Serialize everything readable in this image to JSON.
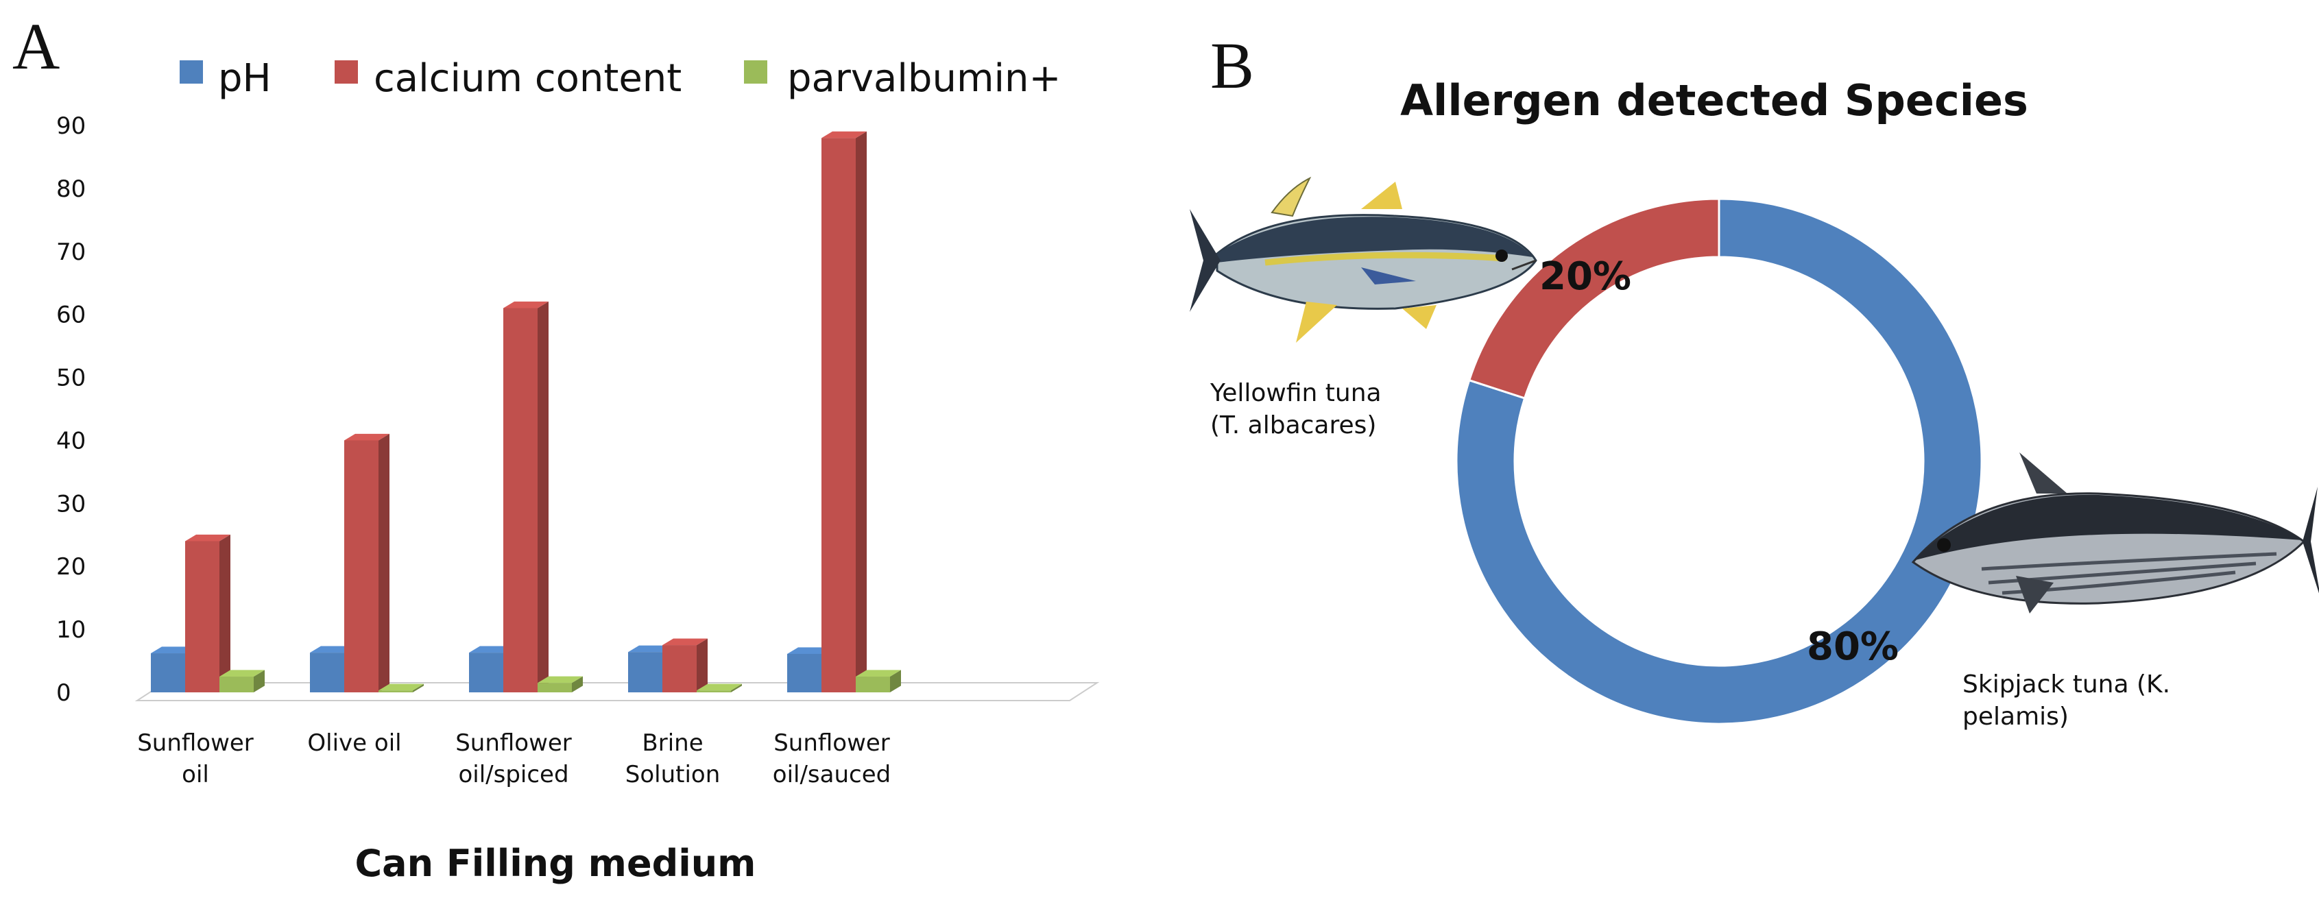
{
  "panels": {
    "a_label": "A",
    "b_label": "B"
  },
  "colors": {
    "ph": "#4f81bd",
    "calcium": "#c0504d",
    "parvalbumin": "#9bbb59",
    "ring_large": "#4f81bd",
    "ring_small": "#c0504d"
  },
  "chart_data": [
    {
      "type": "bar",
      "title": "",
      "xlabel": "Can Filling medium",
      "ylabel": "",
      "ylim": [
        0,
        90
      ],
      "yticks": [
        "0",
        "10",
        "20",
        "30",
        "40",
        "50",
        "60",
        "70",
        "80",
        "90"
      ],
      "legend_placement": "top",
      "categories": [
        [
          "Sunflower",
          "oil"
        ],
        [
          "Olive oil"
        ],
        [
          "Sunflower",
          "oil/spiced"
        ],
        [
          "Brine",
          "Solution"
        ],
        [
          "Sunflower",
          "oil/sauced"
        ]
      ],
      "series": [
        {
          "name": "pH",
          "values": [
            6.2,
            6.3,
            6.3,
            6.4,
            6.1
          ],
          "color": "#4f81bd"
        },
        {
          "name": "calcium content",
          "values": [
            24,
            40,
            61,
            7.5,
            88
          ],
          "color": "#c0504d"
        },
        {
          "name": "parvalbumin+",
          "values": [
            2.5,
            0.3,
            1.5,
            0.3,
            2.5
          ],
          "color": "#9bbb59"
        }
      ]
    },
    {
      "type": "pie",
      "style": "donut",
      "title": "Allergen detected Species",
      "slices": [
        {
          "label": "80%",
          "value": 80,
          "species": [
            "Skipjack tuna (K.",
            "pelamis)"
          ],
          "color": "#4f81bd"
        },
        {
          "label": "20%",
          "value": 20,
          "species": [
            "Yellowfin tuna",
            "(T. albacares)"
          ],
          "color": "#c0504d"
        }
      ]
    }
  ],
  "icons": {
    "fish_top": "yellowfin-tuna-image",
    "fish_bottom": "skipjack-tuna-image"
  }
}
